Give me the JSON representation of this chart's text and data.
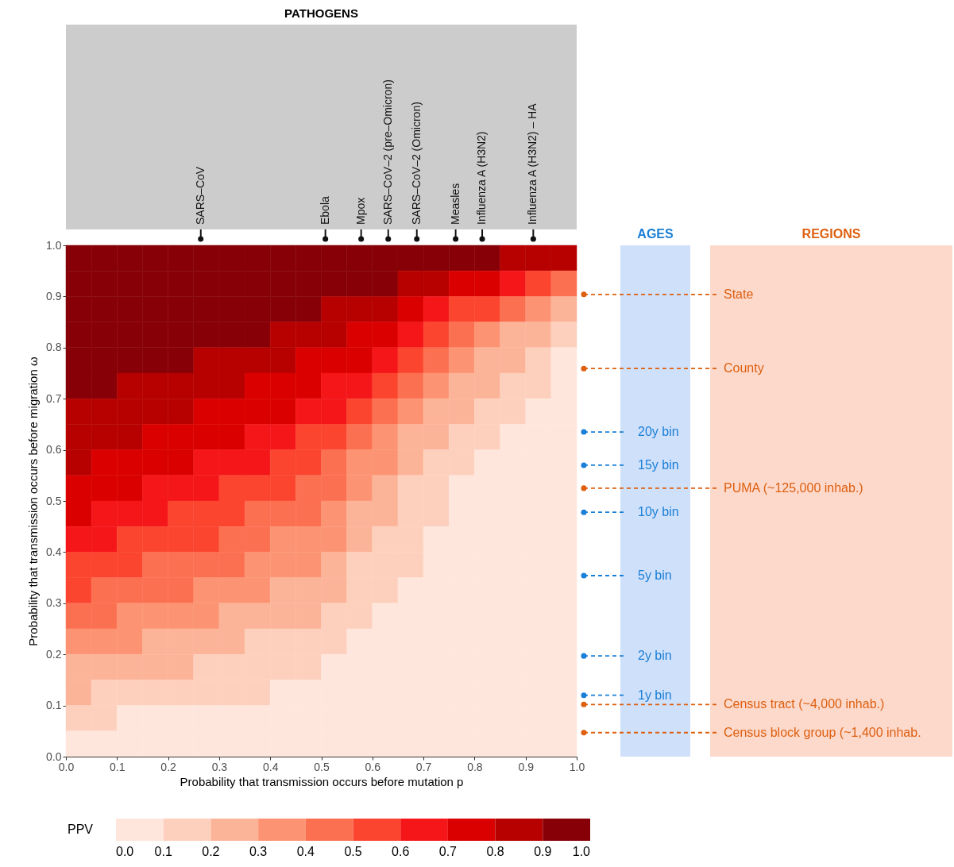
{
  "chart_data": {
    "type": "heatmap",
    "xlabel": "Probability that transmission occurs before mutation p",
    "ylabel": "Probability that transmission occurs before migration ω",
    "clabel": "PPV",
    "x": [
      0.025,
      0.075,
      0.125,
      0.175,
      0.225,
      0.275,
      0.325,
      0.375,
      0.425,
      0.475,
      0.525,
      0.575,
      0.625,
      0.675,
      0.725,
      0.775,
      0.825,
      0.875,
      0.925,
      0.975
    ],
    "y": [
      0.975,
      0.925,
      0.875,
      0.825,
      0.775,
      0.725,
      0.675,
      0.625,
      0.575,
      0.525,
      0.475,
      0.425,
      0.375,
      0.325,
      0.275,
      0.225,
      0.175,
      0.125,
      0.075,
      0.025
    ],
    "xlim": [
      0,
      1
    ],
    "ylim": [
      0,
      1
    ],
    "xticks": [
      {
        "value": 0,
        "label": "0.0"
      },
      0.1,
      0.2,
      0.3,
      0.4,
      0.5,
      0.6,
      0.7,
      0.8,
      0.9,
      {
        "value": 1,
        "label": "1.0"
      }
    ],
    "yticks": [
      {
        "value": 0,
        "label": "0.0"
      },
      0.1,
      0.2,
      0.3,
      0.4,
      0.5,
      0.6,
      0.7,
      0.8,
      0.9,
      {
        "value": 1,
        "label": "1.0"
      }
    ],
    "clim": [
      0,
      1
    ],
    "cticks": [
      {
        "value": 0,
        "label": "0.0"
      },
      0.1,
      0.2,
      0.3,
      0.4,
      0.5,
      0.6,
      0.7,
      0.8,
      0.9,
      {
        "value": 1,
        "label": "1.0"
      }
    ],
    "colors": [
      "#fee6dd",
      "#fdd0bd",
      "#fcb499",
      "#fc9474",
      "#fc7052",
      "#fb452f",
      "#f5161a",
      "#da0000",
      "#b70000",
      "#870007"
    ],
    "cells": [
      [
        0.95,
        0.95,
        0.95,
        0.95,
        0.95,
        0.95,
        0.95,
        0.95,
        0.95,
        0.95,
        0.95,
        0.95,
        0.95,
        0.95,
        0.95,
        0.95,
        0.95,
        0.85,
        0.85,
        0.85
      ],
      [
        0.95,
        0.95,
        0.95,
        0.95,
        0.95,
        0.95,
        0.95,
        0.95,
        0.95,
        0.95,
        0.95,
        0.95,
        0.95,
        0.85,
        0.85,
        0.75,
        0.75,
        0.65,
        0.55,
        0.45
      ],
      [
        0.95,
        0.95,
        0.95,
        0.95,
        0.95,
        0.95,
        0.95,
        0.95,
        0.95,
        0.95,
        0.85,
        0.85,
        0.85,
        0.75,
        0.65,
        0.55,
        0.55,
        0.45,
        0.35,
        0.25
      ],
      [
        0.95,
        0.95,
        0.95,
        0.95,
        0.95,
        0.95,
        0.95,
        0.95,
        0.85,
        0.85,
        0.85,
        0.75,
        0.75,
        0.65,
        0.55,
        0.45,
        0.35,
        0.25,
        0.25,
        0.15
      ],
      [
        0.95,
        0.95,
        0.95,
        0.95,
        0.95,
        0.85,
        0.85,
        0.85,
        0.85,
        0.75,
        0.75,
        0.75,
        0.65,
        0.55,
        0.45,
        0.35,
        0.25,
        0.25,
        0.15,
        0.05
      ],
      [
        0.95,
        0.95,
        0.85,
        0.85,
        0.85,
        0.85,
        0.85,
        0.75,
        0.75,
        0.75,
        0.65,
        0.65,
        0.55,
        0.45,
        0.35,
        0.25,
        0.25,
        0.15,
        0.15,
        0.05
      ],
      [
        0.85,
        0.85,
        0.85,
        0.85,
        0.85,
        0.75,
        0.75,
        0.75,
        0.75,
        0.65,
        0.65,
        0.55,
        0.45,
        0.35,
        0.25,
        0.25,
        0.15,
        0.15,
        0.05,
        0.05
      ],
      [
        0.85,
        0.85,
        0.85,
        0.75,
        0.75,
        0.75,
        0.75,
        0.65,
        0.65,
        0.55,
        0.55,
        0.45,
        0.35,
        0.25,
        0.25,
        0.15,
        0.15,
        0.05,
        0.05,
        0.05
      ],
      [
        0.85,
        0.75,
        0.75,
        0.75,
        0.75,
        0.65,
        0.65,
        0.65,
        0.55,
        0.55,
        0.45,
        0.35,
        0.35,
        0.25,
        0.15,
        0.15,
        0.05,
        0.05,
        0.05,
        0.05
      ],
      [
        0.75,
        0.75,
        0.75,
        0.65,
        0.65,
        0.65,
        0.55,
        0.55,
        0.55,
        0.45,
        0.45,
        0.35,
        0.25,
        0.15,
        0.15,
        0.05,
        0.05,
        0.05,
        0.05,
        0.05
      ],
      [
        0.75,
        0.65,
        0.65,
        0.65,
        0.55,
        0.55,
        0.55,
        0.45,
        0.45,
        0.45,
        0.35,
        0.25,
        0.25,
        0.15,
        0.15,
        0.05,
        0.05,
        0.05,
        0.05,
        0.05
      ],
      [
        0.65,
        0.65,
        0.55,
        0.55,
        0.55,
        0.55,
        0.45,
        0.45,
        0.35,
        0.35,
        0.35,
        0.25,
        0.15,
        0.15,
        0.05,
        0.05,
        0.05,
        0.05,
        0.05,
        0.05
      ],
      [
        0.55,
        0.55,
        0.55,
        0.45,
        0.45,
        0.45,
        0.45,
        0.35,
        0.35,
        0.35,
        0.25,
        0.15,
        0.15,
        0.15,
        0.05,
        0.05,
        0.05,
        0.05,
        0.05,
        0.05
      ],
      [
        0.55,
        0.45,
        0.45,
        0.45,
        0.45,
        0.35,
        0.35,
        0.35,
        0.25,
        0.25,
        0.25,
        0.15,
        0.15,
        0.05,
        0.05,
        0.05,
        0.05,
        0.05,
        0.05,
        0.05
      ],
      [
        0.45,
        0.45,
        0.35,
        0.35,
        0.35,
        0.35,
        0.25,
        0.25,
        0.25,
        0.25,
        0.15,
        0.15,
        0.05,
        0.05,
        0.05,
        0.05,
        0.05,
        0.05,
        0.05,
        0.05
      ],
      [
        0.35,
        0.35,
        0.35,
        0.25,
        0.25,
        0.25,
        0.25,
        0.15,
        0.15,
        0.15,
        0.15,
        0.05,
        0.05,
        0.05,
        0.05,
        0.05,
        0.05,
        0.05,
        0.05,
        0.05
      ],
      [
        0.25,
        0.25,
        0.25,
        0.25,
        0.25,
        0.15,
        0.15,
        0.15,
        0.15,
        0.15,
        0.05,
        0.05,
        0.05,
        0.05,
        0.05,
        0.05,
        0.05,
        0.05,
        0.05,
        0.05
      ],
      [
        0.25,
        0.15,
        0.15,
        0.15,
        0.15,
        0.15,
        0.15,
        0.15,
        0.05,
        0.05,
        0.05,
        0.05,
        0.05,
        0.05,
        0.05,
        0.05,
        0.05,
        0.05,
        0.05,
        0.05
      ],
      [
        0.15,
        0.15,
        0.05,
        0.05,
        0.05,
        0.05,
        0.05,
        0.05,
        0.05,
        0.05,
        0.05,
        0.05,
        0.05,
        0.05,
        0.05,
        0.05,
        0.05,
        0.05,
        0.05,
        0.05
      ],
      [
        0.05,
        0.05,
        0.05,
        0.05,
        0.05,
        0.05,
        0.05,
        0.05,
        0.05,
        0.05,
        0.05,
        0.05,
        0.05,
        0.05,
        0.05,
        0.05,
        0.05,
        0.05,
        0.05,
        0.05
      ]
    ],
    "annotations": [
      "PATHOGENS",
      "AGES",
      "REGIONS"
    ],
    "ref_lines": [
      {
        "axis": "x",
        "value": 0.264,
        "label": "SARS–CoV",
        "color": "#111111",
        "line_style": "solid"
      },
      {
        "axis": "x",
        "value": 0.508,
        "label": "Ebola",
        "color": "#111111",
        "line_style": "solid"
      },
      {
        "axis": "x",
        "value": 0.578,
        "label": "Mpox",
        "color": "#111111",
        "line_style": "solid"
      },
      {
        "axis": "x",
        "value": 0.631,
        "label": "SARS–CoV–2 (pre–Omicron)",
        "color": "#111111",
        "line_style": "solid"
      },
      {
        "axis": "x",
        "value": 0.687,
        "label": "SARS–CoV–2 (Omicron)",
        "color": "#111111",
        "line_style": "solid"
      },
      {
        "axis": "x",
        "value": 0.763,
        "label": "Measles",
        "color": "#111111",
        "line_style": "solid"
      },
      {
        "axis": "x",
        "value": 0.815,
        "label": "Influenza A (H3N2)",
        "color": "#111111",
        "line_style": "solid"
      },
      {
        "axis": "x",
        "value": 0.915,
        "label": "Influenza A (H3N2) – HA",
        "color": "#111111",
        "line_style": "solid"
      },
      {
        "axis": "y",
        "value": 0.635,
        "label": "20y bin",
        "color": "#1a7fd6",
        "line_style": "dashed"
      },
      {
        "axis": "y",
        "value": 0.57,
        "label": "15y bin",
        "color": "#1a7fd6",
        "line_style": "dashed"
      },
      {
        "axis": "y",
        "value": 0.478,
        "label": "10y bin",
        "color": "#1a7fd6",
        "line_style": "dashed"
      },
      {
        "axis": "y",
        "value": 0.354,
        "label": "5y bin",
        "color": "#1a7fd6",
        "line_style": "dashed"
      },
      {
        "axis": "y",
        "value": 0.197,
        "label": "2y bin",
        "color": "#1a7fd6",
        "line_style": "dashed"
      },
      {
        "axis": "y",
        "value": 0.12,
        "label": "1y bin",
        "color": "#1a7fd6",
        "line_style": "dashed"
      },
      {
        "axis": "y",
        "value": 0.904,
        "label": "State",
        "color": "#dd5f0f",
        "line_style": "dashed"
      },
      {
        "axis": "y",
        "value": 0.759,
        "label": "County",
        "color": "#dd5f0f",
        "line_style": "dashed"
      },
      {
        "axis": "y",
        "value": 0.525,
        "label": "PUMA (~125,000 inhab.)",
        "color": "#dd5f0f",
        "line_style": "dashed"
      },
      {
        "axis": "y",
        "value": 0.102,
        "label": "Census tract (~4,000 inhab.)",
        "color": "#dd5f0f",
        "line_style": "dashed"
      },
      {
        "axis": "y",
        "value": 0.047,
        "label": "Census block group (~1,400 inhab.",
        "color": "#dd5f0f",
        "line_style": "dashed"
      }
    ]
  }
}
